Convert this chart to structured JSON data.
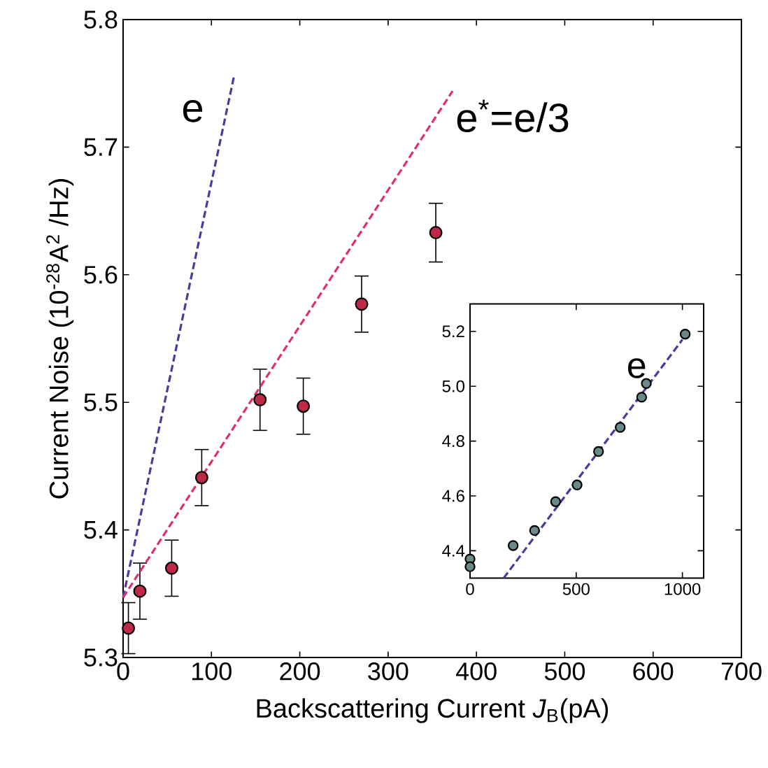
{
  "chart_data": [
    {
      "type": "scatter",
      "xlabel": "Backscattering Current *J*$_{B}$(pA)",
      "ylabel": "Current Noise (10$^{-28}$A$^{2}$ /Hz)",
      "xlim": [
        0,
        700
      ],
      "ylim": [
        5.3,
        5.8
      ],
      "xticks": [
        0,
        100,
        200,
        300,
        400,
        500,
        600,
        700
      ],
      "yticks": [
        5.3,
        5.4,
        5.5,
        5.6,
        5.7,
        5.8
      ],
      "line_style": "dashed",
      "grid": false,
      "series": [
        {
          "color": "#c02848",
          "x": [
            6,
            19,
            55,
            89,
            155,
            204,
            270,
            354
          ],
          "values": [
            5.323,
            5.352,
            5.37,
            5.441,
            5.502,
            5.497,
            5.577,
            5.633
          ],
          "errors": [
            0.02,
            0.022,
            0.022,
            0.022,
            0.024,
            0.022,
            0.022,
            0.023
          ]
        },
        {
          "type": "line",
          "name": "e",
          "color": "#4b3c9c",
          "x": [
            0,
            126
          ],
          "values": [
            5.347,
            5.757
          ]
        },
        {
          "type": "line",
          "name": "e$^{*}$=e/3",
          "color": "#e0306a",
          "x": [
            0,
            373
          ],
          "values": [
            5.347,
            5.744
          ]
        }
      ]
    },
    {
      "type": "scatter",
      "xlim": [
        0,
        1100
      ],
      "ylim": [
        4.3,
        5.3
      ],
      "xticks": [
        0,
        500,
        1000
      ],
      "yticks": [
        4.4,
        4.6,
        4.8,
        {
          "value": 5,
          "label": "5.0"
        },
        5.2
      ],
      "line_style": "dashed",
      "grid": false,
      "series": [
        {
          "color": "#6a8a8a",
          "x": [
            0,
            0,
            203,
            304,
            403,
            504,
            605,
            707,
            808,
            830,
            1013
          ],
          "values": [
            4.37,
            4.342,
            4.419,
            4.474,
            4.579,
            4.64,
            4.762,
            4.85,
            4.96,
            5.01,
            5.19
          ]
        },
        {
          "type": "line",
          "name": "e",
          "color": "#4b3c9c",
          "x": [
            158,
            1000
          ],
          "values": [
            4.3,
            5.17
          ]
        }
      ]
    }
  ]
}
